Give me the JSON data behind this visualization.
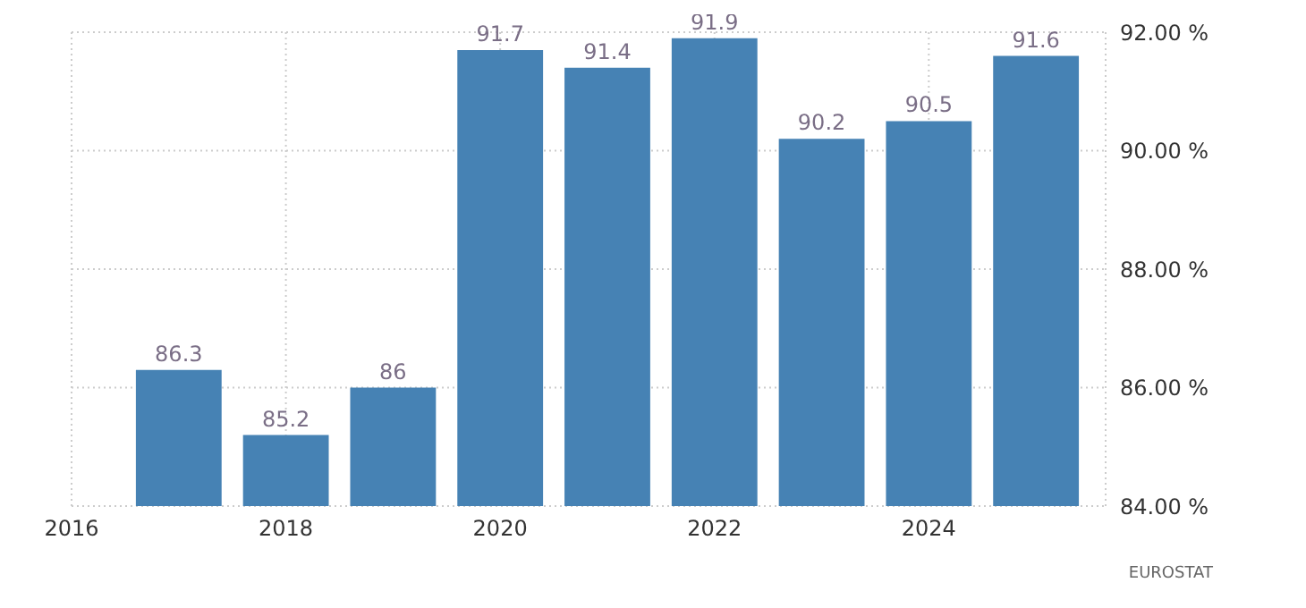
{
  "chart_data": {
    "type": "bar",
    "x": [
      2017,
      2018,
      2019,
      2020,
      2021,
      2022,
      2023,
      2024,
      2025
    ],
    "values": [
      86.3,
      85.2,
      86,
      91.7,
      91.4,
      91.9,
      90.2,
      90.5,
      91.6
    ],
    "color": "#4682b4",
    "xlim": [
      2016,
      2025.65
    ],
    "xticks": [
      2016,
      2018,
      2020,
      2022,
      2024
    ],
    "ylim": [
      84,
      92
    ],
    "yticks": [
      {
        "value": 84,
        "label": "84.00 %"
      },
      {
        "value": 86,
        "label": "86.00 %"
      },
      {
        "value": 88,
        "label": "88.00 %"
      },
      {
        "value": 90,
        "label": "90.00 %"
      },
      {
        "value": 92,
        "label": "92.00 %"
      }
    ],
    "grid": true,
    "data_labels": true,
    "annotations": [
      "EUROSTAT"
    ]
  }
}
